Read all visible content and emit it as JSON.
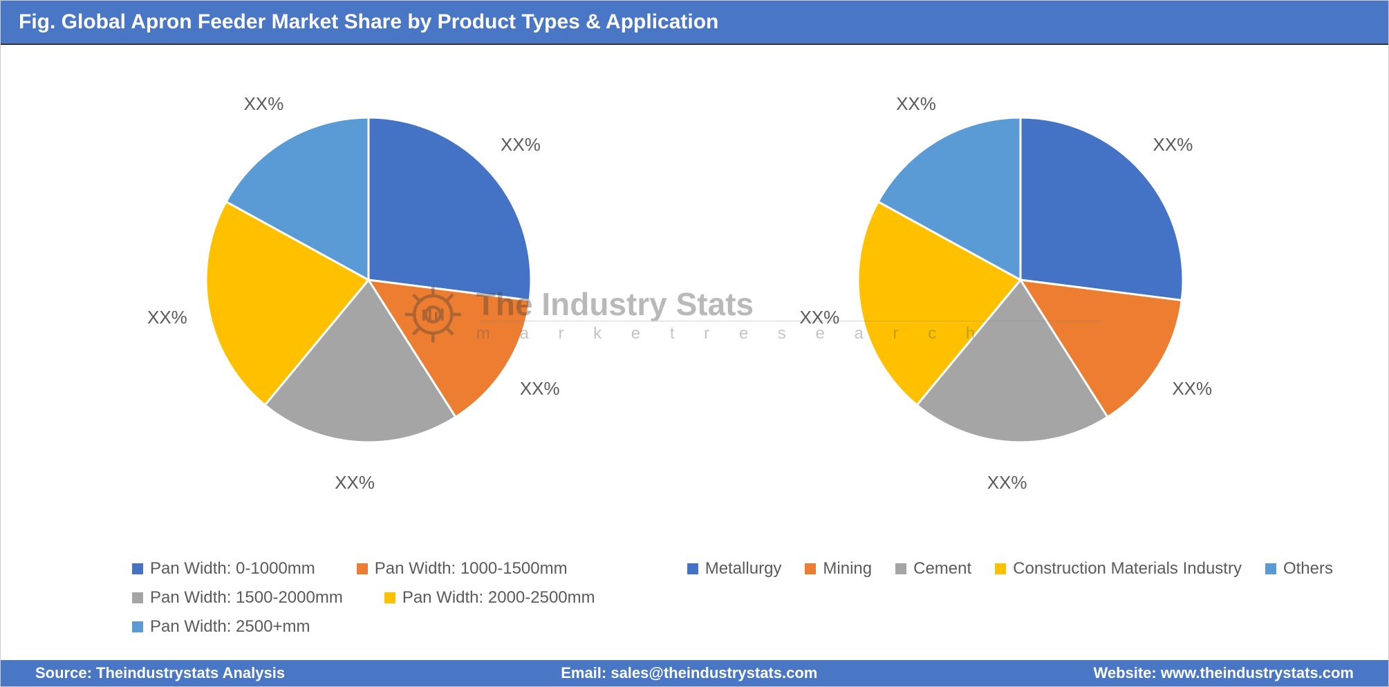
{
  "title": "Fig. Global Apron Feeder Market Share by Product Types & Application",
  "title_bg": "#4a76c6",
  "title_color": "#ffffff",
  "title_fontsize": 30,
  "page_bg": "#ffffff",
  "label_text_color": "#5a5a5a",
  "label_fontsize": 26,
  "legend_fontsize": 24,
  "watermark": {
    "line1": "The Industry Stats",
    "line2": "m a r k e t   r e s e a r c h",
    "color": "#3a3a3a",
    "opacity": 0.35
  },
  "chart_left": {
    "type": "pie",
    "radius": 235,
    "start_angle_deg": -90,
    "stroke": "#ffffff",
    "stroke_width": 3,
    "label_template": "XX%",
    "slices": [
      {
        "name": "Pan Width: 0-1000mm",
        "value": 27,
        "color": "#4472c4",
        "label": "XX%"
      },
      {
        "name": "Pan Width: 1000-1500mm",
        "value": 14,
        "color": "#ed7d31",
        "label": "XX%"
      },
      {
        "name": "Pan Width: 1500-2000mm",
        "value": 20,
        "color": "#a5a5a5",
        "label": "XX%"
      },
      {
        "name": "Pan Width: 2000-2500mm",
        "value": 22,
        "color": "#ffc000",
        "label": "XX%"
      },
      {
        "name": "Pan Width: 2500+mm",
        "value": 17,
        "color": "#5b9bd5",
        "label": "XX%"
      }
    ],
    "legend_items": [
      {
        "label": "Pan Width: 0-1000mm",
        "color": "#4472c4"
      },
      {
        "label": "Pan Width: 1000-1500mm",
        "color": "#ed7d31"
      },
      {
        "label": "Pan Width: 1500-2000mm",
        "color": "#a5a5a5"
      },
      {
        "label": "Pan Width: 2000-2500mm",
        "color": "#ffc000"
      },
      {
        "label": "Pan Width: 2500+mm",
        "color": "#5b9bd5"
      }
    ]
  },
  "chart_right": {
    "type": "pie",
    "radius": 235,
    "start_angle_deg": -90,
    "stroke": "#ffffff",
    "stroke_width": 3,
    "label_template": "XX%",
    "slices": [
      {
        "name": "Metallurgy",
        "value": 27,
        "color": "#4472c4",
        "label": "XX%"
      },
      {
        "name": "Mining",
        "value": 14,
        "color": "#ed7d31",
        "label": "XX%"
      },
      {
        "name": "Cement",
        "value": 20,
        "color": "#a5a5a5",
        "label": "XX%"
      },
      {
        "name": "Construction Materials Industry",
        "value": 22,
        "color": "#ffc000",
        "label": "XX%"
      },
      {
        "name": "Others",
        "value": 17,
        "color": "#5b9bd5",
        "label": "XX%"
      }
    ],
    "legend_items": [
      {
        "label": "Metallurgy",
        "color": "#4472c4"
      },
      {
        "label": "Mining",
        "color": "#ed7d31"
      },
      {
        "label": "Cement",
        "color": "#a5a5a5"
      },
      {
        "label": "Construction Materials Industry",
        "color": "#ffc000"
      },
      {
        "label": "Others",
        "color": "#5b9bd5"
      }
    ]
  },
  "footer": {
    "bg": "#4a76c6",
    "color": "#ffffff",
    "source_label": "Source: Theindustrystats Analysis",
    "email_label": "Email: sales@theindustrystats.com",
    "website_label": "Website: www.theindustrystats.com"
  }
}
